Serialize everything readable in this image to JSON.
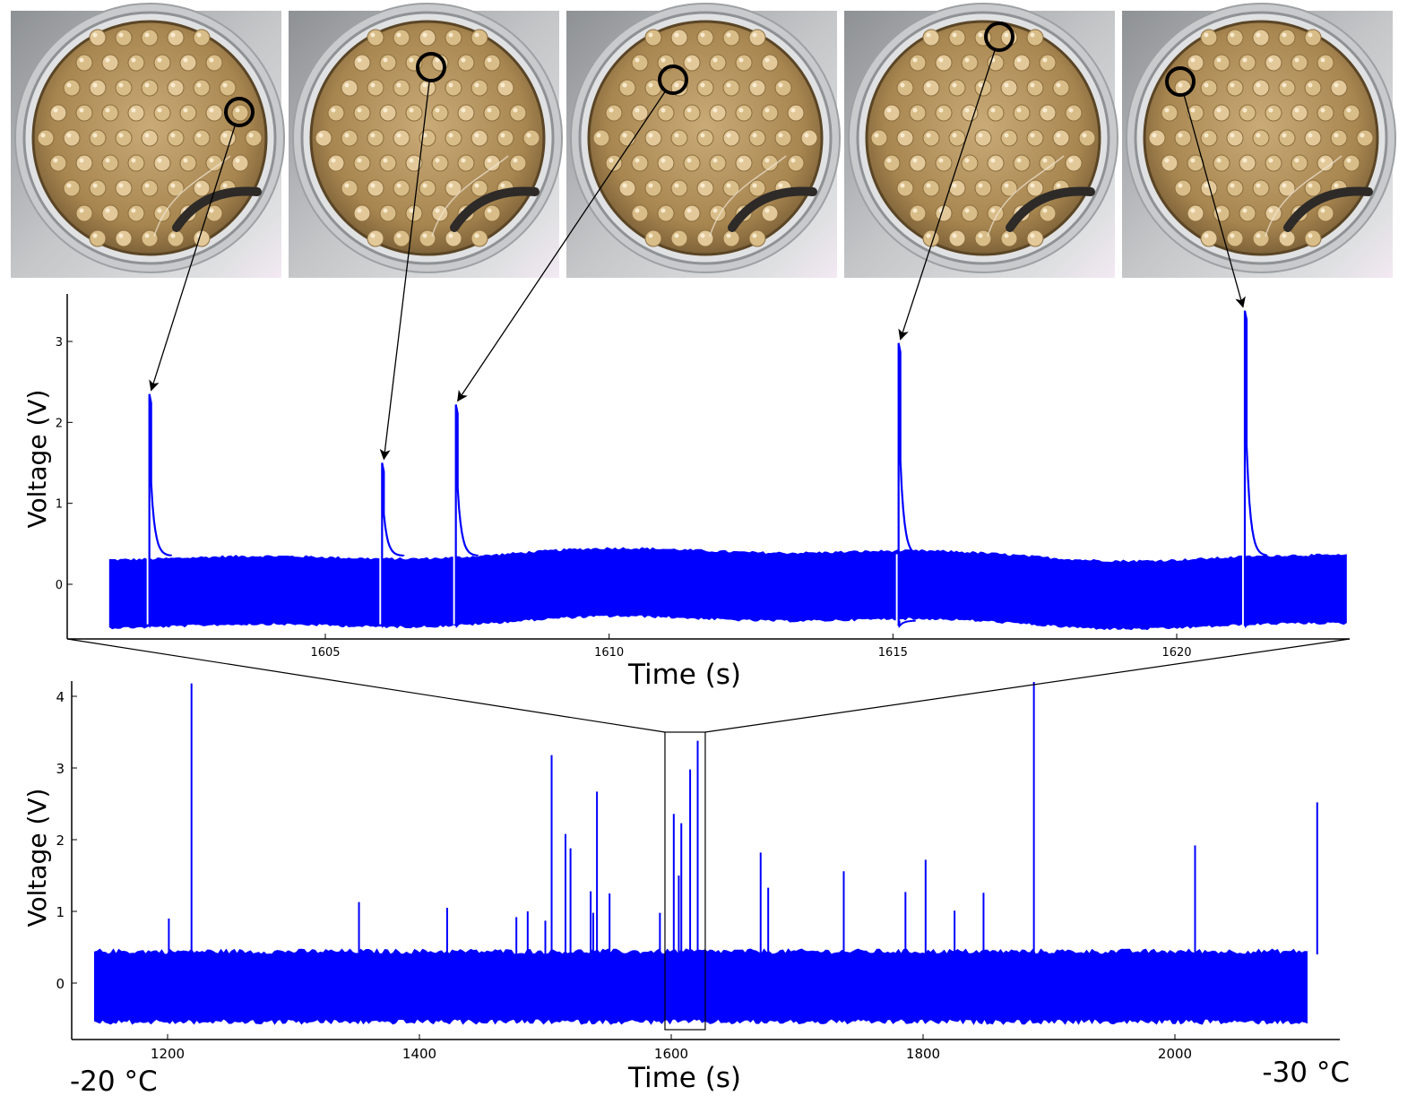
{
  "photos": [
    {
      "name": "droplet-photo-1"
    },
    {
      "name": "droplet-photo-2"
    },
    {
      "name": "droplet-photo-3"
    },
    {
      "name": "droplet-photo-4"
    },
    {
      "name": "droplet-photo-5"
    }
  ],
  "temperature_labels": {
    "start": "-20 °C",
    "end": "-30 °C"
  },
  "colors": {
    "signal": "#0000ff",
    "axis": "#000000",
    "photo_bg": "#8a6a3a",
    "plate_metal": "#b7b9bb"
  },
  "chart_data": [
    {
      "type": "line",
      "title": "",
      "xlabel": "Time (s)",
      "ylabel": "Voltage (V)",
      "xlim": [
        1601.2,
        1623.3
      ],
      "ylim": [
        -0.7,
        3.5
      ],
      "xticks": [
        1605,
        1610,
        1615,
        1620
      ],
      "yticks": [
        0,
        1,
        2,
        3
      ],
      "grid": false,
      "series": [
        {
          "noise_band": {
            "upper": 0.35,
            "lower": -0.45,
            "x_range": [
              1601.2,
              1623.0
            ]
          },
          "spikes": [
            {
              "x": 1601.9,
              "y": 2.35
            },
            {
              "x": 1606.0,
              "y": 1.5
            },
            {
              "x": 1607.3,
              "y": 2.22
            },
            {
              "x": 1615.1,
              "y": 2.98
            },
            {
              "x": 1621.2,
              "y": 3.38
            }
          ]
        }
      ]
    },
    {
      "type": "line",
      "title": "",
      "xlabel": "Time (s)",
      "ylabel": "Voltage (V)",
      "xlim": [
        1130,
        2115
      ],
      "ylim": [
        -0.78,
        4.25
      ],
      "xticks": [
        1200,
        1400,
        1600,
        1800,
        2000
      ],
      "yticks": [
        0,
        1,
        2,
        3,
        4
      ],
      "grid": false,
      "zoom_window": {
        "x": [
          1595,
          1627
        ],
        "y": [
          -0.65,
          3.5
        ]
      },
      "series": [
        {
          "noise_band": {
            "upper": 0.4,
            "lower": -0.5,
            "x_range": [
              1142,
              2105
            ]
          },
          "spikes": [
            {
              "x": 1201,
              "y": 0.9
            },
            {
              "x": 1219,
              "y": 4.18
            },
            {
              "x": 1352,
              "y": 1.13
            },
            {
              "x": 1422,
              "y": 1.05
            },
            {
              "x": 1477,
              "y": 0.92
            },
            {
              "x": 1486,
              "y": 1.0
            },
            {
              "x": 1500,
              "y": 0.87
            },
            {
              "x": 1505,
              "y": 3.18
            },
            {
              "x": 1516,
              "y": 2.08
            },
            {
              "x": 1520,
              "y": 1.88
            },
            {
              "x": 1536,
              "y": 1.28
            },
            {
              "x": 1538,
              "y": 0.98
            },
            {
              "x": 1541,
              "y": 2.67
            },
            {
              "x": 1551,
              "y": 1.25
            },
            {
              "x": 1591,
              "y": 0.98
            },
            {
              "x": 1602,
              "y": 2.36
            },
            {
              "x": 1606,
              "y": 1.5
            },
            {
              "x": 1608,
              "y": 2.23
            },
            {
              "x": 1615,
              "y": 2.98
            },
            {
              "x": 1621,
              "y": 3.38
            },
            {
              "x": 1671,
              "y": 1.82
            },
            {
              "x": 1677,
              "y": 1.33
            },
            {
              "x": 1737,
              "y": 1.56
            },
            {
              "x": 1786,
              "y": 1.27
            },
            {
              "x": 1802,
              "y": 1.72
            },
            {
              "x": 1825,
              "y": 1.01
            },
            {
              "x": 1848,
              "y": 1.26
            },
            {
              "x": 1888,
              "y": 4.2
            },
            {
              "x": 2016,
              "y": 1.92
            },
            {
              "x": 2113,
              "y": 2.52
            }
          ]
        }
      ]
    }
  ]
}
